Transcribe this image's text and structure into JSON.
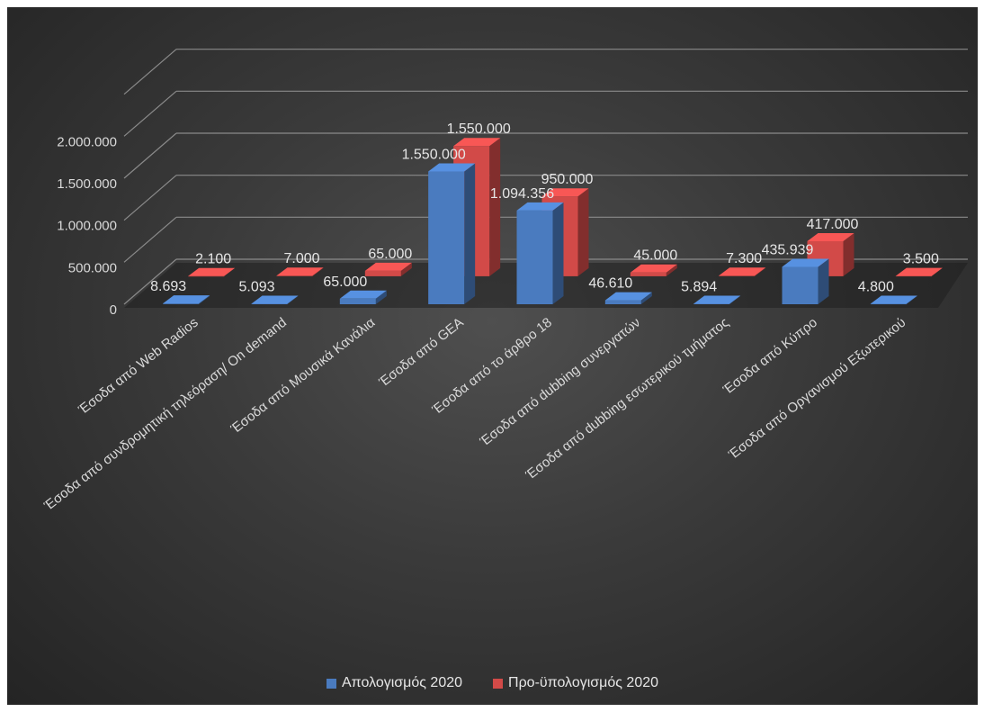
{
  "chart_data": {
    "type": "bar",
    "style": "3d-clustered",
    "title": "",
    "xlabel": "",
    "ylabel": "",
    "ylim": [
      0,
      2500000
    ],
    "y_ticks": [
      "0",
      "500.000",
      "1.000.000",
      "1.500.000",
      "2.000.000"
    ],
    "y_tick_values": [
      0,
      500000,
      1000000,
      1500000,
      2000000
    ],
    "grid": true,
    "legend_position": "bottom",
    "categories": [
      "Έσοδα από Web Radios",
      "Έσοδα από συνδρομητική τηλεόραση/ On demand",
      "Έσοδα από Μουσικά Κανάλια",
      "Έσοδα από GEA",
      "Έσοδα από το άρθρο 18",
      "Έσοδα από dubbing συνεργατών",
      "Έσοδα από dubbing εσωτερικού τμήματος",
      "Έσοδα από Κύπρο",
      "Έσοδα από Οργανισμού Εξωτερικού"
    ],
    "series": [
      {
        "name": "Απολογισμός 2020",
        "color": "#4a7bbf",
        "values": [
          8693,
          5093,
          65000,
          1550000,
          1094356,
          46610,
          5894,
          435939,
          4800
        ],
        "labels": [
          "8.693",
          "5.093",
          "65.000",
          "1.550.000",
          "1.094.356",
          "46.610",
          "5.894",
          "435.939",
          "4.800"
        ]
      },
      {
        "name": "Προ-ϋπολογισμός 2020",
        "color": "#d24a48",
        "values": [
          2100,
          7000,
          65000,
          1550000,
          950000,
          45000,
          7300,
          417000,
          3500
        ],
        "labels": [
          "2.100",
          "7.000",
          "65.000",
          "1.550.000",
          "950.000",
          "45.000",
          "7.300",
          "417.000",
          "3.500"
        ]
      }
    ]
  }
}
